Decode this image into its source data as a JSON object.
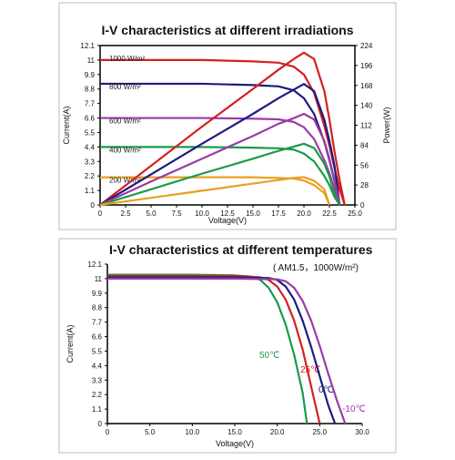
{
  "chart_data": [
    {
      "type": "line",
      "title": "I-V characteristics at different irradiations",
      "x_label": "Voltage(V)",
      "y_label": "Current(A)",
      "y2_label": "Power(W)",
      "xlim": [
        0,
        25
      ],
      "xticks": [
        0,
        2.5,
        {
          "value": 5,
          "label": "5.0"
        },
        7.5,
        {
          "value": 10,
          "label": "10.0"
        },
        12.5,
        {
          "value": 15,
          "label": "15.0"
        },
        17.5,
        {
          "value": 20,
          "label": "20.0"
        },
        22.5,
        {
          "value": 25,
          "label": "25.0"
        }
      ],
      "ylim": [
        0,
        12.1
      ],
      "yticks": [
        0,
        1.1,
        2.2,
        3.3,
        4.4,
        5.5,
        6.6,
        7.7,
        8.8,
        9.9,
        11,
        12.1
      ],
      "y2lim": [
        0,
        224
      ],
      "y2ticks": [
        0,
        28,
        56,
        84,
        112,
        140,
        168,
        196,
        224
      ],
      "x": [
        0,
        5,
        10,
        15,
        17.5,
        19,
        20,
        21,
        22,
        22.5,
        23,
        23.5,
        24
      ],
      "series": [
        {
          "name": "1000 W/m²",
          "color": "#d42020",
          "values": [
            11.0,
            11.0,
            11.0,
            10.9,
            10.8,
            10.5,
            9.9,
            8.5,
            6.0,
            4.5,
            2.8,
            1.2,
            0
          ]
        },
        {
          "name": "800 W/m²",
          "color": "#1c1c80",
          "values": [
            9.2,
            9.2,
            9.2,
            9.1,
            9.0,
            8.7,
            8.1,
            6.9,
            4.8,
            3.4,
            1.8,
            0,
            null
          ]
        },
        {
          "name": "600 W/m²",
          "color": "#9b3aa8",
          "values": [
            6.6,
            6.6,
            6.6,
            6.55,
            6.5,
            6.3,
            5.9,
            5.0,
            3.4,
            2.4,
            1.2,
            0,
            null
          ]
        },
        {
          "name": "400 W/m²",
          "color": "#1a9a4a",
          "values": [
            4.4,
            4.4,
            4.4,
            4.35,
            4.3,
            4.2,
            3.9,
            3.3,
            2.2,
            1.5,
            0.6,
            0,
            null
          ]
        },
        {
          "name": "200 W/m²",
          "color": "#e8a020",
          "values": [
            2.1,
            2.1,
            2.1,
            2.1,
            2.05,
            2.0,
            1.85,
            1.5,
            0.9,
            0,
            null,
            null,
            null
          ]
        },
        {
          "color": "#d42020",
          "axis": "y2",
          "values": [
            0,
            55,
            110,
            163,
            190,
            205,
            214,
            205,
            160,
            120,
            75,
            35,
            0
          ]
        },
        {
          "color": "#1c1c80",
          "axis": "y2",
          "values": [
            0,
            43,
            86,
            128,
            150,
            162,
            170,
            160,
            120,
            90,
            55,
            0,
            null
          ]
        },
        {
          "color": "#9b3aa8",
          "axis": "y2",
          "values": [
            0,
            33,
            65,
            97,
            114,
            122,
            128,
            120,
            90,
            65,
            35,
            0,
            null
          ]
        },
        {
          "color": "#1a9a4a",
          "axis": "y2",
          "values": [
            0,
            22,
            44,
            65,
            76,
            82,
            86,
            80,
            58,
            40,
            15,
            0,
            null
          ]
        },
        {
          "color": "#e8a020",
          "axis": "y2",
          "values": [
            0,
            10,
            20,
            30,
            35,
            38,
            39,
            34,
            22,
            0,
            null,
            null,
            null
          ]
        }
      ]
    },
    {
      "type": "line",
      "title": "I-V characteristics at different temperatures",
      "subtitle": "( AM1.5，1000W/m²)",
      "x_label": "Voltage(V)",
      "y_label": "Current(A)",
      "xlim": [
        0,
        30
      ],
      "xticks": [
        0,
        {
          "value": 5,
          "label": "5.0"
        },
        {
          "value": 10,
          "label": "10.0"
        },
        {
          "value": 15,
          "label": "15.0"
        },
        {
          "value": 20,
          "label": "20.0"
        },
        {
          "value": 25,
          "label": "25.0"
        },
        {
          "value": 30,
          "label": "30.0"
        }
      ],
      "ylim": [
        0,
        12.1
      ],
      "yticks": [
        0,
        1.1,
        2.2,
        3.3,
        4.4,
        5.5,
        6.6,
        7.7,
        8.8,
        9.9,
        11,
        12.1
      ],
      "series": [
        {
          "name": "50℃",
          "color": "#1a9a4a",
          "x": [
            0,
            5,
            10,
            15,
            17,
            18,
            19,
            20,
            21,
            22,
            23,
            23.5
          ],
          "values": [
            11.3,
            11.3,
            11.3,
            11.25,
            11.15,
            10.9,
            10.3,
            9.2,
            7.5,
            5.2,
            2.3,
            0
          ]
        },
        {
          "name": "25℃",
          "color": "#d42020",
          "x": [
            0,
            5,
            10,
            15,
            18,
            19,
            20,
            21,
            22,
            23,
            24,
            25
          ],
          "values": [
            11.2,
            11.2,
            11.2,
            11.2,
            11.1,
            10.9,
            10.4,
            9.4,
            7.8,
            5.6,
            2.8,
            0
          ]
        },
        {
          "name": "0℃",
          "color": "#1c1c80",
          "x": [
            0,
            5,
            10,
            15,
            19,
            20,
            21,
            22,
            23,
            24,
            25,
            26,
            26.8
          ],
          "values": [
            11.1,
            11.1,
            11.1,
            11.1,
            11.05,
            10.9,
            10.4,
            9.4,
            7.8,
            5.8,
            3.6,
            1.4,
            0
          ]
        },
        {
          "name": "-10℃",
          "color": "#9b3aa8",
          "x": [
            0,
            5,
            10,
            15,
            20,
            21,
            22,
            23,
            24,
            25,
            26,
            27,
            28
          ],
          "values": [
            11.0,
            11.0,
            11.0,
            11.0,
            10.95,
            10.8,
            10.3,
            9.3,
            7.8,
            5.9,
            3.8,
            1.8,
            0
          ]
        }
      ]
    }
  ]
}
